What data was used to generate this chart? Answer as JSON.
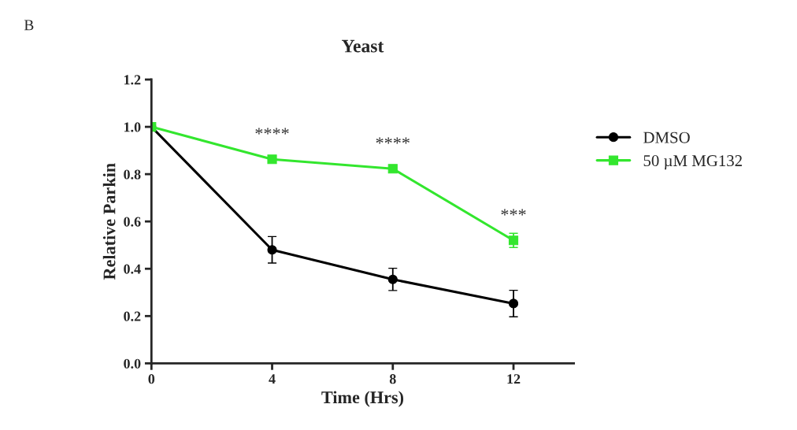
{
  "chart_data": {
    "type": "line",
    "title": "Yeast",
    "xlabel": "Time (Hrs)",
    "ylabel": "Relative Parkin",
    "x": [
      0,
      4,
      8,
      12
    ],
    "series": [
      {
        "name": "DMSO",
        "color": "#000000",
        "marker": "circle",
        "values": [
          1.0,
          0.48,
          0.355,
          0.253
        ],
        "errors": [
          null,
          0.056,
          0.047,
          0.056
        ]
      },
      {
        "name": "50 µM MG132",
        "color": "#33e62e",
        "marker": "square",
        "values": [
          1.0,
          0.863,
          0.823,
          0.52
        ],
        "errors": [
          null,
          null,
          null,
          0.03
        ]
      }
    ],
    "xlim": [
      0,
      14
    ],
    "xticks": [
      0,
      4,
      8,
      12
    ],
    "ylim": [
      0,
      1.2
    ],
    "yticks": [
      {
        "value": 0,
        "label": "0.0"
      },
      0.2,
      0.4,
      0.6,
      0.8,
      {
        "value": 1,
        "label": "1.0"
      },
      1.2
    ],
    "annotations": [
      "****",
      "****",
      "***",
      "B"
    ],
    "legend": "right",
    "grid": false,
    "line_style": "solid"
  }
}
